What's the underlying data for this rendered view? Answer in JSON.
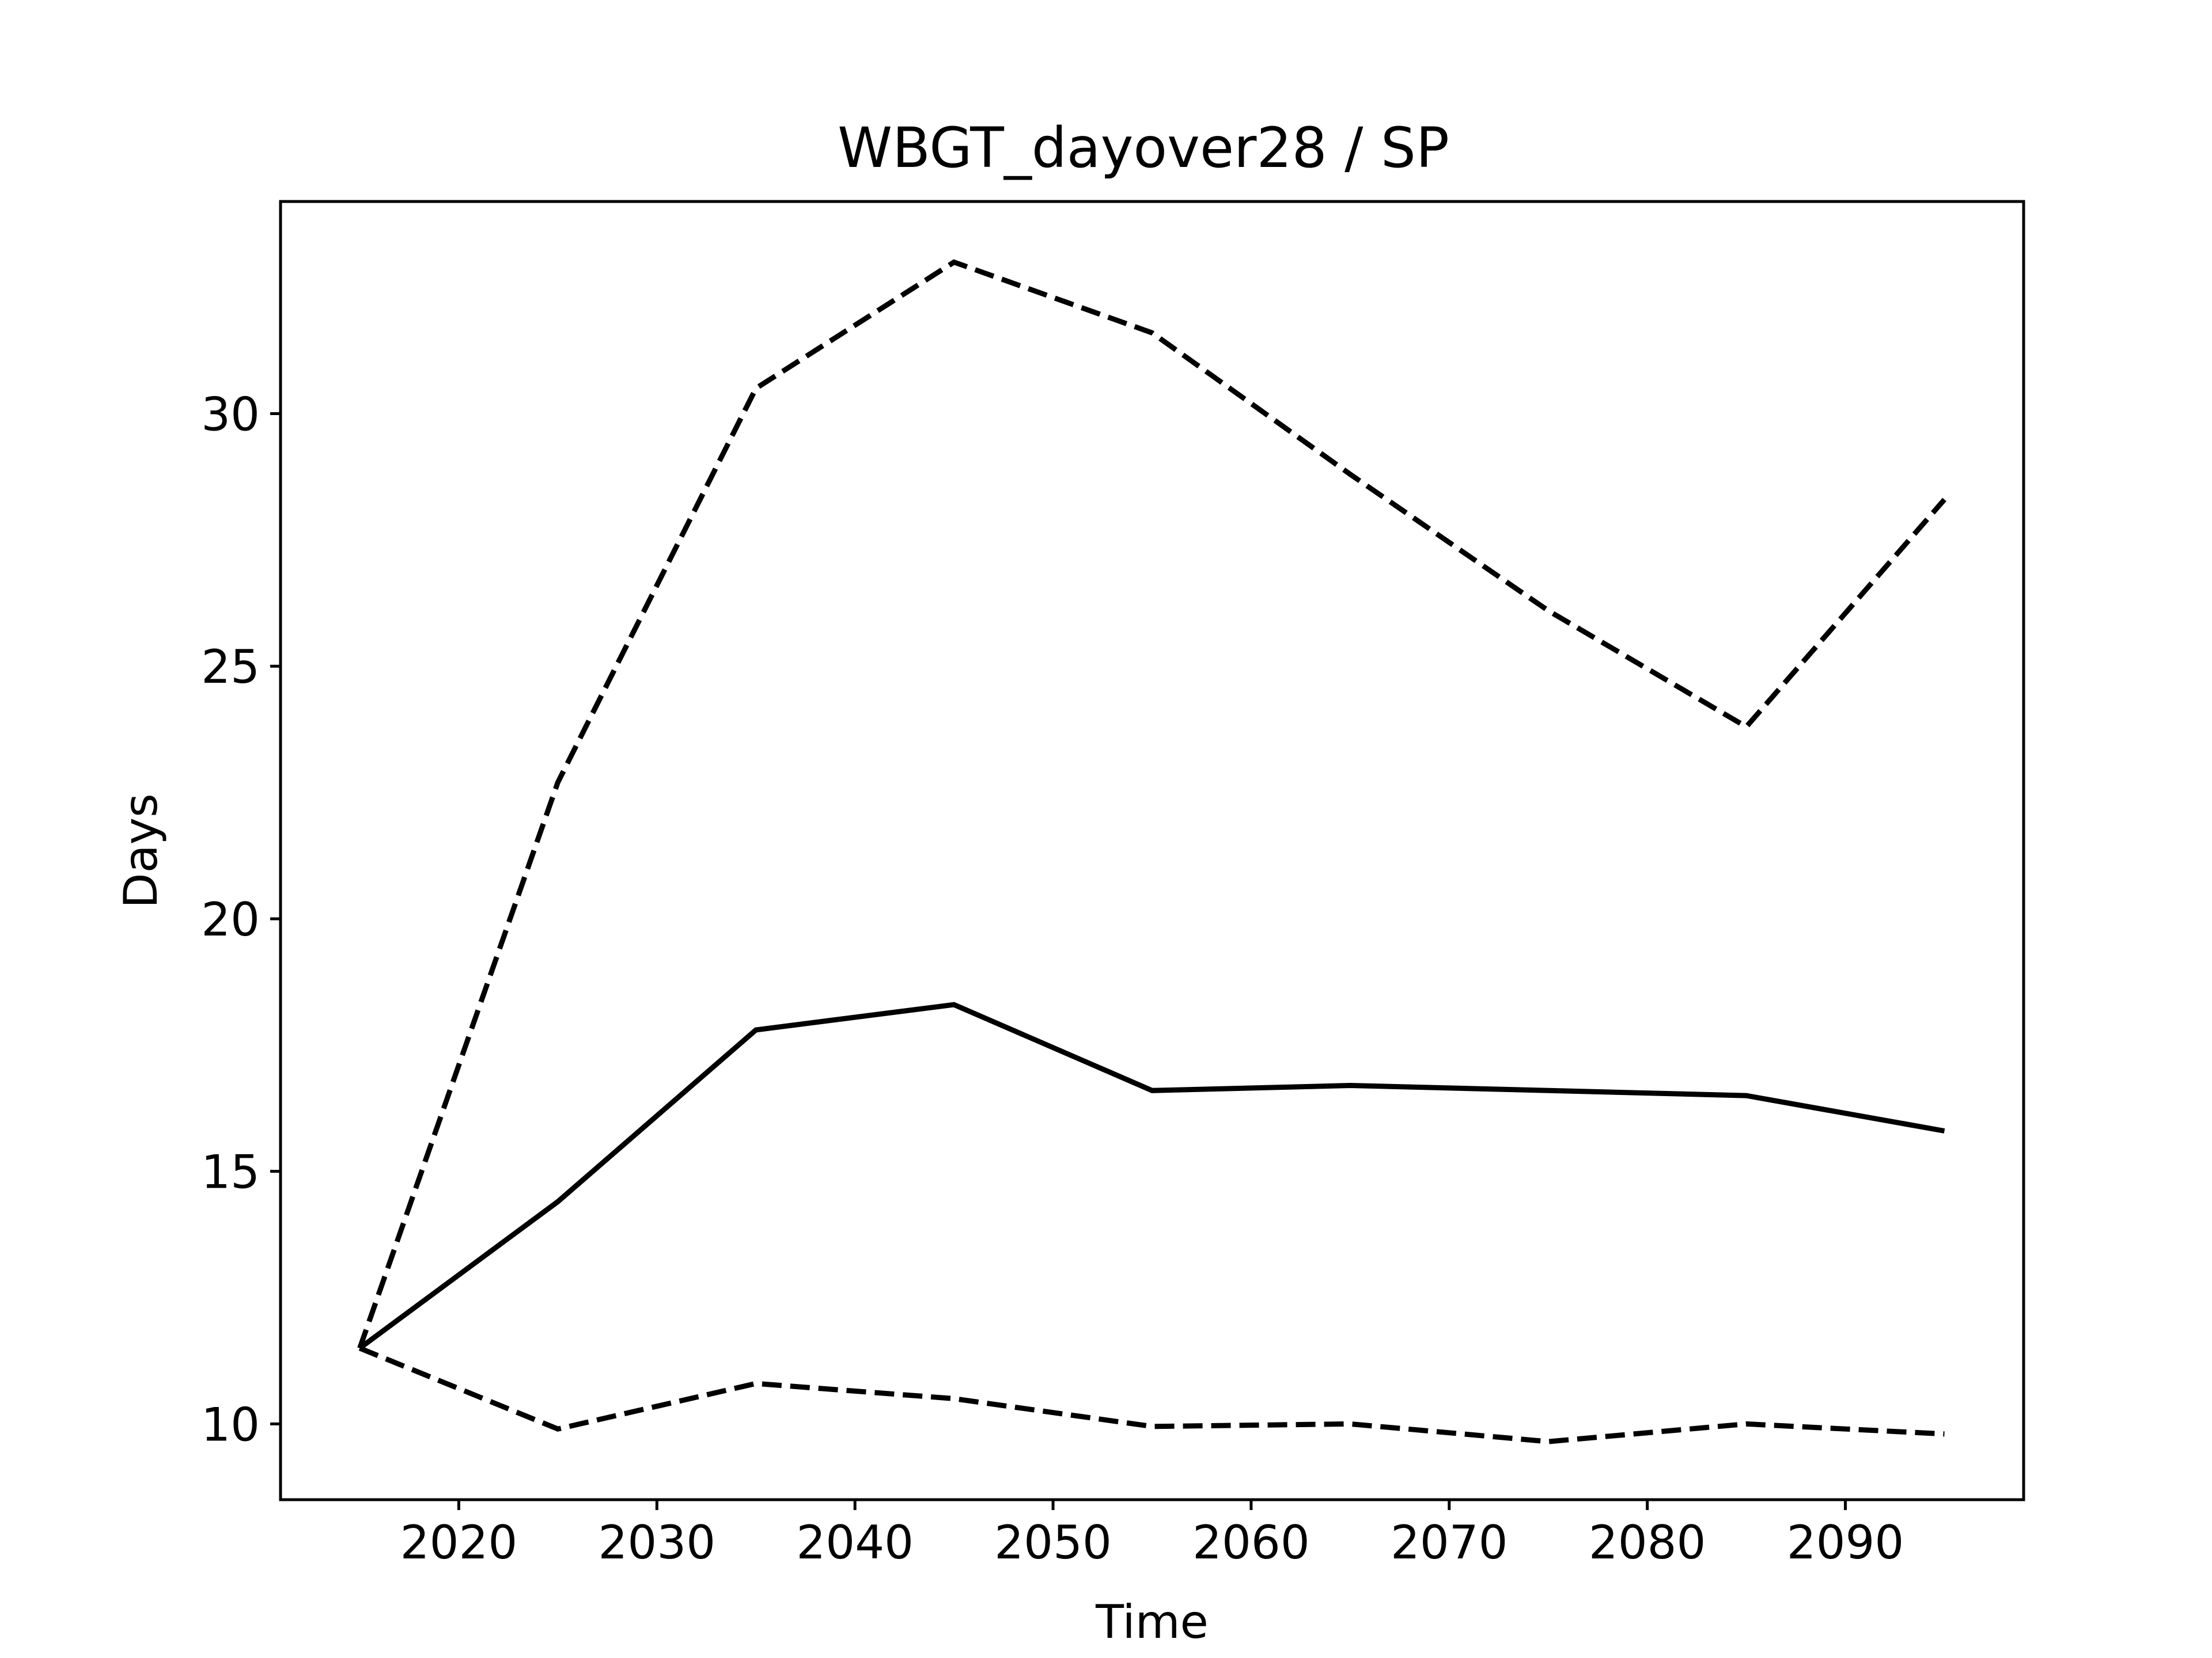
{
  "chart_data": {
    "type": "line",
    "title": "WBGT_dayover28 / SP",
    "xlabel": "Time",
    "ylabel": "Days",
    "xlim": [
      2011,
      2099
    ],
    "ylim": [
      8.5,
      34.2
    ],
    "xticks": [
      2020,
      2030,
      2040,
      2050,
      2060,
      2070,
      2080,
      2090
    ],
    "yticks": [
      10,
      15,
      20,
      25,
      30
    ],
    "grid": false,
    "x": [
      2015,
      2025,
      2035,
      2045,
      2055,
      2065,
      2075,
      2085,
      2095
    ],
    "series": [
      {
        "style": "solid",
        "color": "#000000",
        "values": [
          11.5,
          14.4,
          17.8,
          18.3,
          16.6,
          16.7,
          16.6,
          16.5,
          15.8
        ]
      },
      {
        "style": "dashed",
        "color": "#000000",
        "values": [
          11.5,
          22.7,
          30.5,
          33.0,
          31.6,
          28.8,
          26.1,
          23.8,
          28.3
        ]
      },
      {
        "style": "dashed",
        "color": "#000000",
        "values": [
          11.5,
          9.9,
          10.8,
          10.5,
          9.95,
          10.0,
          9.65,
          10.0,
          9.8
        ]
      }
    ]
  }
}
